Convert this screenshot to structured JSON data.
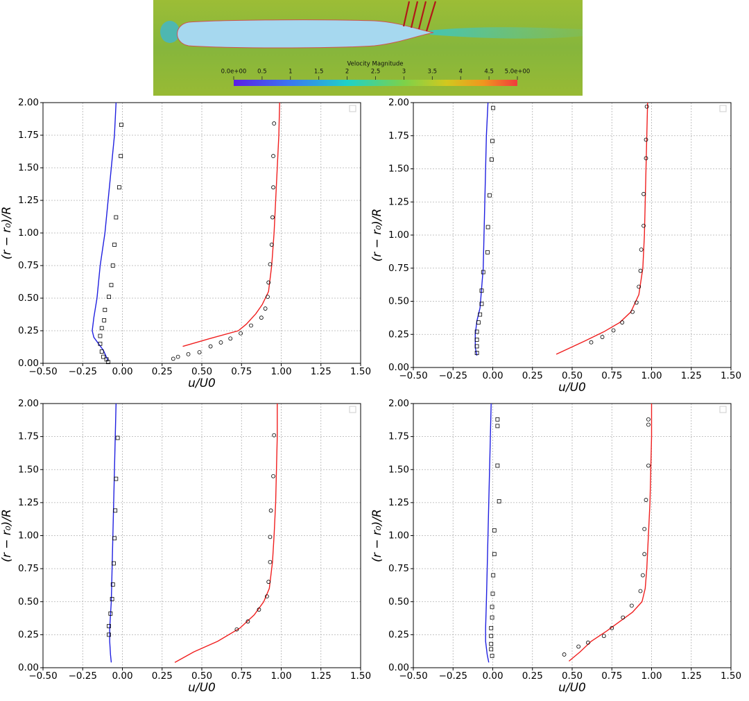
{
  "header_image": {
    "colorbar": {
      "title": "Velocity Magnitude",
      "clim": [
        0,
        5
      ],
      "ticks": [
        {
          "value": 0,
          "label": "0.0e+00"
        },
        0.5,
        1,
        1.5,
        2,
        2.5,
        3,
        3.5,
        4,
        4.5,
        {
          "value": 5,
          "label": "5.0e+00"
        }
      ]
    }
  },
  "chart_data": [
    {
      "type": "line",
      "xlabel": "u/U0",
      "ylabel": "(r − r₀)/R",
      "xlim": [
        -0.5,
        1.5
      ],
      "ylim": [
        0,
        2
      ],
      "grid": true,
      "xticks": [
        {
          "value": -0.5,
          "label": "−0.50"
        },
        {
          "value": -0.25,
          "label": "−0.25"
        },
        {
          "value": 0,
          "label": "0.00"
        },
        {
          "value": 0.25,
          "label": "0.25"
        },
        {
          "value": 0.5,
          "label": "0.50"
        },
        {
          "value": 0.75,
          "label": "0.75"
        },
        {
          "value": 1,
          "label": "1.00"
        },
        {
          "value": 1.25,
          "label": "1.25"
        },
        {
          "value": 1.5,
          "label": "1.50"
        }
      ],
      "yticks": [
        {
          "value": 0,
          "label": "0.00"
        },
        {
          "value": 0.25,
          "label": "0.25"
        },
        {
          "value": 0.5,
          "label": "0.50"
        },
        {
          "value": 0.75,
          "label": "0.75"
        },
        {
          "value": 1,
          "label": "1.00"
        },
        {
          "value": 1.25,
          "label": "1.25"
        },
        {
          "value": 1.5,
          "label": "1.50"
        },
        {
          "value": 1.75,
          "label": "1.75"
        },
        {
          "value": 2,
          "label": "2.00"
        }
      ],
      "series": [
        {
          "color": "#1f1fe0",
          "marker": "none",
          "x": [
            -0.04,
            -0.05,
            -0.07,
            -0.09,
            -0.11,
            -0.14,
            -0.16,
            -0.18,
            -0.19,
            -0.18,
            -0.15,
            -0.12,
            -0.09
          ],
          "values": [
            2.0,
            1.75,
            1.5,
            1.25,
            1.0,
            0.75,
            0.5,
            0.35,
            0.25,
            0.2,
            0.15,
            0.1,
            0.02
          ]
        },
        {
          "color": "#000000",
          "marker": "square",
          "x": [
            -0.007,
            -0.01,
            -0.02,
            -0.04,
            -0.05,
            -0.06,
            -0.07,
            -0.085,
            -0.11,
            -0.115,
            -0.13,
            -0.14,
            -0.14,
            -0.13,
            -0.12,
            -0.1,
            -0.09
          ],
          "values": [
            1.83,
            1.59,
            1.35,
            1.12,
            0.91,
            0.75,
            0.6,
            0.51,
            0.41,
            0.33,
            0.27,
            0.21,
            0.15,
            0.09,
            0.05,
            0.03,
            0.01
          ]
        },
        {
          "color": "#f01e1e",
          "marker": "none",
          "x": [
            0.99,
            0.985,
            0.975,
            0.965,
            0.955,
            0.94,
            0.92,
            0.88,
            0.84,
            0.78,
            0.73,
            0.55,
            0.38
          ],
          "values": [
            2.0,
            1.75,
            1.5,
            1.25,
            1.0,
            0.75,
            0.55,
            0.45,
            0.38,
            0.3,
            0.25,
            0.19,
            0.13
          ]
        },
        {
          "color": "#000000",
          "marker": "circle",
          "x": [
            0.955,
            0.95,
            0.95,
            0.945,
            0.94,
            0.93,
            0.92,
            0.915,
            0.9,
            0.875,
            0.81,
            0.745,
            0.68,
            0.62,
            0.555,
            0.485,
            0.415,
            0.35,
            0.32
          ],
          "values": [
            1.84,
            1.59,
            1.35,
            1.12,
            0.91,
            0.76,
            0.62,
            0.51,
            0.42,
            0.35,
            0.29,
            0.23,
            0.19,
            0.16,
            0.13,
            0.085,
            0.07,
            0.05,
            0.035
          ]
        }
      ]
    },
    {
      "type": "line",
      "xlabel": "u/U0",
      "ylabel": "(r − r₀)/R",
      "xlim": [
        -0.5,
        1.5
      ],
      "ylim": [
        0,
        2
      ],
      "grid": true,
      "xticks": [
        {
          "value": -0.5,
          "label": "−0.50"
        },
        {
          "value": -0.25,
          "label": "−0.25"
        },
        {
          "value": 0,
          "label": "0.00"
        },
        {
          "value": 0.25,
          "label": "0.25"
        },
        {
          "value": 0.5,
          "label": "0.50"
        },
        {
          "value": 0.75,
          "label": "0.75"
        },
        {
          "value": 1,
          "label": "1.00"
        },
        {
          "value": 1.25,
          "label": "1.25"
        },
        {
          "value": 1.5,
          "label": "1.50"
        }
      ],
      "yticks": [
        {
          "value": 0,
          "label": "0.00"
        },
        {
          "value": 0.25,
          "label": "0.25"
        },
        {
          "value": 0.5,
          "label": "0.50"
        },
        {
          "value": 0.75,
          "label": "0.75"
        },
        {
          "value": 1,
          "label": "1.00"
        },
        {
          "value": 1.25,
          "label": "1.25"
        },
        {
          "value": 1.5,
          "label": "1.50"
        },
        {
          "value": 1.75,
          "label": "1.75"
        },
        {
          "value": 2,
          "label": "2.00"
        }
      ],
      "series": [
        {
          "color": "#1f1fe0",
          "marker": "none",
          "x": [
            -0.03,
            -0.04,
            -0.045,
            -0.05,
            -0.055,
            -0.06,
            -0.07,
            -0.08,
            -0.1,
            -0.11,
            -0.11,
            -0.1
          ],
          "values": [
            2.0,
            1.75,
            1.5,
            1.25,
            1.0,
            0.75,
            0.6,
            0.45,
            0.35,
            0.25,
            0.15,
            0.09
          ]
        },
        {
          "color": "#000000",
          "marker": "square",
          "x": [
            0.002,
            -0.002,
            -0.007,
            -0.02,
            -0.03,
            -0.033,
            -0.06,
            -0.07,
            -0.07,
            -0.08,
            -0.09,
            -0.1,
            -0.1,
            -0.1,
            -0.1
          ],
          "values": [
            1.96,
            1.71,
            1.57,
            1.3,
            1.06,
            0.87,
            0.72,
            0.58,
            0.48,
            0.4,
            0.34,
            0.27,
            0.21,
            0.16,
            0.11
          ]
        },
        {
          "color": "#f01e1e",
          "marker": "none",
          "x": [
            0.975,
            0.97,
            0.965,
            0.96,
            0.955,
            0.945,
            0.92,
            0.87,
            0.8,
            0.7,
            0.58,
            0.4
          ],
          "values": [
            2.0,
            1.75,
            1.5,
            1.25,
            1.0,
            0.75,
            0.55,
            0.42,
            0.34,
            0.27,
            0.2,
            0.1
          ]
        },
        {
          "color": "#000000",
          "marker": "circle",
          "x": [
            0.97,
            0.965,
            0.965,
            0.95,
            0.95,
            0.935,
            0.93,
            0.92,
            0.905,
            0.88,
            0.815,
            0.76,
            0.69,
            0.62
          ],
          "values": [
            1.97,
            1.72,
            1.58,
            1.31,
            1.07,
            0.89,
            0.73,
            0.61,
            0.49,
            0.42,
            0.34,
            0.28,
            0.23,
            0.19
          ]
        }
      ]
    },
    {
      "type": "line",
      "xlabel": "u/U0",
      "ylabel": "(r − r₀)/R",
      "xlim": [
        -0.5,
        1.5
      ],
      "ylim": [
        0,
        2
      ],
      "grid": true,
      "xticks": [
        {
          "value": -0.5,
          "label": "−0.50"
        },
        {
          "value": -0.25,
          "label": "−0.25"
        },
        {
          "value": 0,
          "label": "0.00"
        },
        {
          "value": 0.25,
          "label": "0.25"
        },
        {
          "value": 0.5,
          "label": "0.50"
        },
        {
          "value": 0.75,
          "label": "0.75"
        },
        {
          "value": 1,
          "label": "1.00"
        },
        {
          "value": 1.25,
          "label": "1.25"
        },
        {
          "value": 1.5,
          "label": "1.50"
        }
      ],
      "yticks": [
        {
          "value": 0,
          "label": "0.00"
        },
        {
          "value": 0.25,
          "label": "0.25"
        },
        {
          "value": 0.5,
          "label": "0.50"
        },
        {
          "value": 0.75,
          "label": "0.75"
        },
        {
          "value": 1,
          "label": "1.00"
        },
        {
          "value": 1.25,
          "label": "1.25"
        },
        {
          "value": 1.5,
          "label": "1.50"
        },
        {
          "value": 1.75,
          "label": "1.75"
        },
        {
          "value": 2,
          "label": "2.00"
        }
      ],
      "series": [
        {
          "color": "#1f1fe0",
          "marker": "none",
          "x": [
            -0.04,
            -0.045,
            -0.05,
            -0.055,
            -0.06,
            -0.065,
            -0.07,
            -0.075,
            -0.08,
            -0.08,
            -0.075,
            -0.07
          ],
          "values": [
            2.0,
            1.75,
            1.5,
            1.25,
            1.0,
            0.75,
            0.5,
            0.4,
            0.3,
            0.2,
            0.1,
            0.04
          ]
        },
        {
          "color": "#000000",
          "marker": "square",
          "x": [
            -0.03,
            -0.04,
            -0.045,
            -0.05,
            -0.055,
            -0.06,
            -0.065,
            -0.075,
            -0.085,
            -0.085
          ],
          "values": [
            1.74,
            1.43,
            1.19,
            0.98,
            0.79,
            0.63,
            0.52,
            0.41,
            0.315,
            0.25
          ]
        },
        {
          "color": "#f01e1e",
          "marker": "none",
          "x": [
            0.975,
            0.975,
            0.97,
            0.965,
            0.955,
            0.945,
            0.925,
            0.89,
            0.83,
            0.74,
            0.6,
            0.45,
            0.33
          ],
          "values": [
            2.0,
            1.75,
            1.5,
            1.25,
            1.0,
            0.8,
            0.6,
            0.5,
            0.4,
            0.3,
            0.2,
            0.12,
            0.04
          ]
        },
        {
          "color": "#000000",
          "marker": "circle",
          "x": [
            0.955,
            0.95,
            0.935,
            0.93,
            0.93,
            0.92,
            0.91,
            0.86,
            0.79,
            0.72
          ],
          "values": [
            1.76,
            1.45,
            1.19,
            0.99,
            0.8,
            0.65,
            0.54,
            0.44,
            0.35,
            0.29
          ]
        }
      ]
    },
    {
      "type": "line",
      "xlabel": "u/U0",
      "ylabel": "(r − r₀)/R",
      "xlim": [
        -0.5,
        1.5
      ],
      "ylim": [
        0,
        2
      ],
      "grid": true,
      "xticks": [
        {
          "value": -0.5,
          "label": "−0.50"
        },
        {
          "value": -0.25,
          "label": "−0.25"
        },
        {
          "value": 0,
          "label": "0.00"
        },
        {
          "value": 0.25,
          "label": "0.25"
        },
        {
          "value": 0.5,
          "label": "0.50"
        },
        {
          "value": 0.75,
          "label": "0.75"
        },
        {
          "value": 1,
          "label": "1.00"
        },
        {
          "value": 1.25,
          "label": "1.25"
        },
        {
          "value": 1.5,
          "label": "1.50"
        }
      ],
      "yticks": [
        {
          "value": 0,
          "label": "0.00"
        },
        {
          "value": 0.25,
          "label": "0.25"
        },
        {
          "value": 0.5,
          "label": "0.50"
        },
        {
          "value": 0.75,
          "label": "0.75"
        },
        {
          "value": 1,
          "label": "1.00"
        },
        {
          "value": 1.25,
          "label": "1.25"
        },
        {
          "value": 1.5,
          "label": "1.50"
        },
        {
          "value": 1.75,
          "label": "1.75"
        },
        {
          "value": 2,
          "label": "2.00"
        }
      ],
      "series": [
        {
          "color": "#1f1fe0",
          "marker": "none",
          "x": [
            -0.01,
            -0.015,
            -0.02,
            -0.025,
            -0.03,
            -0.035,
            -0.04,
            -0.045,
            -0.045,
            -0.035,
            -0.025
          ],
          "values": [
            2.0,
            1.75,
            1.5,
            1.25,
            1.0,
            0.75,
            0.5,
            0.3,
            0.2,
            0.1,
            0.04
          ]
        },
        {
          "color": "#000000",
          "marker": "square",
          "x": [
            0.03,
            0.03,
            0.03,
            0.04,
            0.01,
            0.01,
            0.003,
            0,
            -0.004,
            -0.004,
            -0.01,
            -0.01,
            -0.01,
            -0.01,
            -0.004
          ],
          "values": [
            1.88,
            1.83,
            1.53,
            1.26,
            1.04,
            0.86,
            0.7,
            0.56,
            0.46,
            0.38,
            0.3,
            0.24,
            0.18,
            0.14,
            0.09
          ]
        },
        {
          "color": "#f01e1e",
          "marker": "none",
          "x": [
            1.0,
            1.0,
            0.995,
            0.99,
            0.98,
            0.97,
            0.96,
            0.94,
            0.88,
            0.8,
            0.72,
            0.62,
            0.55,
            0.48
          ],
          "values": [
            2.0,
            1.75,
            1.5,
            1.25,
            1.0,
            0.75,
            0.6,
            0.5,
            0.42,
            0.35,
            0.28,
            0.2,
            0.12,
            0.05
          ]
        },
        {
          "color": "#000000",
          "marker": "circle",
          "x": [
            0.98,
            0.98,
            0.98,
            0.965,
            0.955,
            0.955,
            0.945,
            0.93,
            0.875,
            0.82,
            0.75,
            0.7,
            0.6,
            0.54,
            0.45
          ],
          "values": [
            1.88,
            1.84,
            1.53,
            1.27,
            1.05,
            0.86,
            0.7,
            0.58,
            0.47,
            0.38,
            0.3,
            0.24,
            0.19,
            0.16,
            0.1
          ]
        }
      ]
    }
  ]
}
